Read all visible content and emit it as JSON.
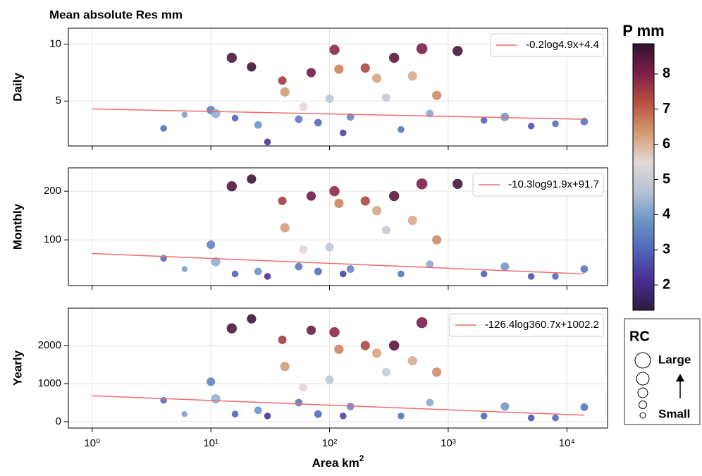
{
  "chart_data": [
    {
      "type": "scatter",
      "title": "Mean absolute Res mm",
      "ylabel": "Daily",
      "xlog": true,
      "grid": true,
      "xlim": [
        0.63,
        22000
      ],
      "ylim": [
        1.05,
        11.4
      ],
      "xticks": [
        1,
        10,
        100,
        1000,
        10000
      ],
      "yticks": [
        5,
        10
      ],
      "x": [
        4,
        6,
        10,
        11,
        15,
        16,
        22,
        25,
        30,
        40,
        42,
        55,
        60,
        70,
        80,
        100,
        110,
        120,
        130,
        150,
        200,
        250,
        300,
        350,
        400,
        500,
        600,
        700,
        800,
        1200,
        2000,
        3000,
        5000,
        8000,
        14000
      ],
      "y": [
        2.6,
        3.8,
        4.2,
        3.9,
        8.8,
        3.5,
        8.0,
        2.9,
        1.4,
        6.8,
        5.8,
        3.4,
        4.5,
        7.5,
        3.1,
        5.2,
        9.5,
        7.8,
        2.2,
        3.6,
        7.9,
        7.0,
        5.3,
        8.8,
        2.5,
        7.2,
        9.6,
        3.9,
        5.5,
        9.4,
        3.3,
        3.6,
        2.8,
        3.0,
        3.2
      ],
      "p": [
        3.2,
        4.0,
        3.5,
        4.3,
        8.5,
        3.0,
        8.7,
        3.8,
        2.2,
        7.5,
        6.3,
        3.4,
        5.5,
        8.2,
        3.1,
        4.8,
        7.8,
        6.6,
        2.5,
        3.6,
        7.3,
        6.2,
        5.0,
        8.4,
        3.3,
        6.1,
        8.0,
        4.2,
        6.5,
        8.6,
        3.0,
        3.9,
        2.8,
        3.1,
        3.3
      ],
      "rc": [
        0.3,
        0.2,
        0.5,
        0.6,
        0.7,
        0.3,
        0.6,
        0.4,
        0.3,
        0.5,
        0.6,
        0.4,
        0.5,
        0.6,
        0.4,
        0.5,
        0.7,
        0.6,
        0.3,
        0.4,
        0.6,
        0.6,
        0.5,
        0.7,
        0.3,
        0.6,
        0.8,
        0.4,
        0.6,
        0.7,
        0.3,
        0.5,
        0.3,
        0.3,
        0.4
      ],
      "trend": {
        "name": "-0.2log4.9x+4.4",
        "color": "#f26b6b",
        "x": [
          1,
          14000
        ],
        "y": [
          4.3,
          3.4
        ]
      }
    },
    {
      "type": "scatter",
      "ylabel": "Monthly",
      "xlog": true,
      "grid": true,
      "xlim": [
        0.63,
        22000
      ],
      "ylim": [
        6,
        248
      ],
      "xticks": [
        1,
        10,
        100,
        1000,
        10000
      ],
      "yticks": [
        100,
        200
      ],
      "x": [
        4,
        6,
        10,
        11,
        15,
        16,
        22,
        25,
        30,
        40,
        42,
        55,
        60,
        70,
        80,
        100,
        110,
        120,
        130,
        150,
        200,
        250,
        300,
        350,
        400,
        500,
        600,
        700,
        800,
        1200,
        2000,
        3000,
        5000,
        8000,
        14000
      ],
      "y": [
        62,
        40,
        90,
        55,
        210,
        30,
        225,
        35,
        25,
        180,
        125,
        45,
        80,
        190,
        35,
        85,
        200,
        175,
        30,
        40,
        180,
        160,
        120,
        190,
        30,
        140,
        215,
        50,
        100,
        215,
        30,
        45,
        25,
        25,
        40
      ],
      "p": [
        3.2,
        4.0,
        3.5,
        4.3,
        8.5,
        3.0,
        8.7,
        3.8,
        2.2,
        7.5,
        6.3,
        3.4,
        5.5,
        8.2,
        3.1,
        4.8,
        7.8,
        6.6,
        2.5,
        3.6,
        7.3,
        6.2,
        5.0,
        8.4,
        3.3,
        6.1,
        8.0,
        4.2,
        6.5,
        8.6,
        3.0,
        3.9,
        2.8,
        3.1,
        3.3
      ],
      "rc": [
        0.3,
        0.2,
        0.5,
        0.6,
        0.7,
        0.3,
        0.6,
        0.4,
        0.3,
        0.5,
        0.6,
        0.4,
        0.5,
        0.6,
        0.4,
        0.5,
        0.7,
        0.6,
        0.3,
        0.4,
        0.6,
        0.6,
        0.5,
        0.7,
        0.3,
        0.6,
        0.8,
        0.4,
        0.6,
        0.7,
        0.3,
        0.5,
        0.3,
        0.3,
        0.4
      ],
      "trend": {
        "name": "-10.3log91.9x+91.7",
        "color": "#f26b6b",
        "x": [
          1,
          14000
        ],
        "y": [
          72,
          30
        ]
      }
    },
    {
      "type": "scatter",
      "ylabel": "Yearly",
      "xlabel": "Area km",
      "xlabel_sup": "2",
      "xlog": true,
      "grid": true,
      "xlim": [
        0.63,
        22000
      ],
      "ylim": [
        -167,
        2980
      ],
      "xticks": [
        {
          "value": 1,
          "label": "10⁰"
        },
        {
          "value": 10,
          "label": "10¹"
        },
        {
          "value": 100,
          "label": "10²"
        },
        {
          "value": 1000,
          "label": "10³"
        },
        {
          "value": 10000,
          "label": "10⁴"
        }
      ],
      "yticks": [
        0,
        1000,
        2000
      ],
      "x": [
        4,
        6,
        10,
        11,
        15,
        16,
        22,
        25,
        30,
        40,
        42,
        55,
        60,
        70,
        80,
        100,
        110,
        120,
        130,
        150,
        200,
        250,
        300,
        350,
        400,
        500,
        600,
        700,
        800,
        1200,
        2000,
        3000,
        5000,
        8000,
        14000
      ],
      "y": [
        560,
        200,
        1050,
        600,
        2450,
        200,
        2700,
        300,
        150,
        2150,
        1450,
        500,
        900,
        2400,
        200,
        1100,
        2350,
        1900,
        150,
        400,
        2000,
        1800,
        1300,
        2000,
        150,
        1600,
        2600,
        500,
        1300,
        2550,
        150,
        400,
        100,
        100,
        380
      ],
      "p": [
        3.2,
        4.0,
        3.5,
        4.3,
        8.5,
        3.0,
        8.7,
        3.8,
        2.2,
        7.5,
        6.3,
        3.4,
        5.5,
        8.2,
        3.1,
        4.8,
        7.8,
        6.6,
        2.5,
        3.6,
        7.3,
        6.2,
        5.0,
        8.4,
        3.3,
        6.1,
        8.0,
        4.2,
        6.5,
        8.6,
        3.0,
        3.9,
        2.8,
        3.1,
        3.3
      ],
      "rc": [
        0.3,
        0.2,
        0.5,
        0.6,
        0.7,
        0.3,
        0.6,
        0.4,
        0.3,
        0.5,
        0.6,
        0.4,
        0.5,
        0.6,
        0.4,
        0.5,
        0.7,
        0.6,
        0.3,
        0.4,
        0.6,
        0.6,
        0.5,
        0.7,
        0.3,
        0.6,
        0.8,
        0.4,
        0.6,
        0.7,
        0.3,
        0.5,
        0.3,
        0.3,
        0.4
      ],
      "trend": {
        "name": "-126.4log360.7x+1002.2",
        "color": "#f26b6b",
        "x": [
          1,
          14000
        ],
        "y": [
          680,
          170
        ]
      }
    },
    {
      "type": "colorbar",
      "title": "P mm",
      "lim": [
        1.28,
        8.86
      ],
      "ticks": [
        2,
        3,
        4,
        5,
        6,
        7,
        8
      ],
      "colors": [
        "#2d1b3f",
        "#4b2d91",
        "#4f63b8",
        "#6c93c6",
        "#b3c3d4",
        "#e3d8d6",
        "#d49a70",
        "#b85140",
        "#7e1e4a",
        "#2e1330"
      ]
    },
    {
      "type": "size-legend",
      "title": "RC",
      "labels": [
        "Large",
        "Small"
      ]
    }
  ]
}
